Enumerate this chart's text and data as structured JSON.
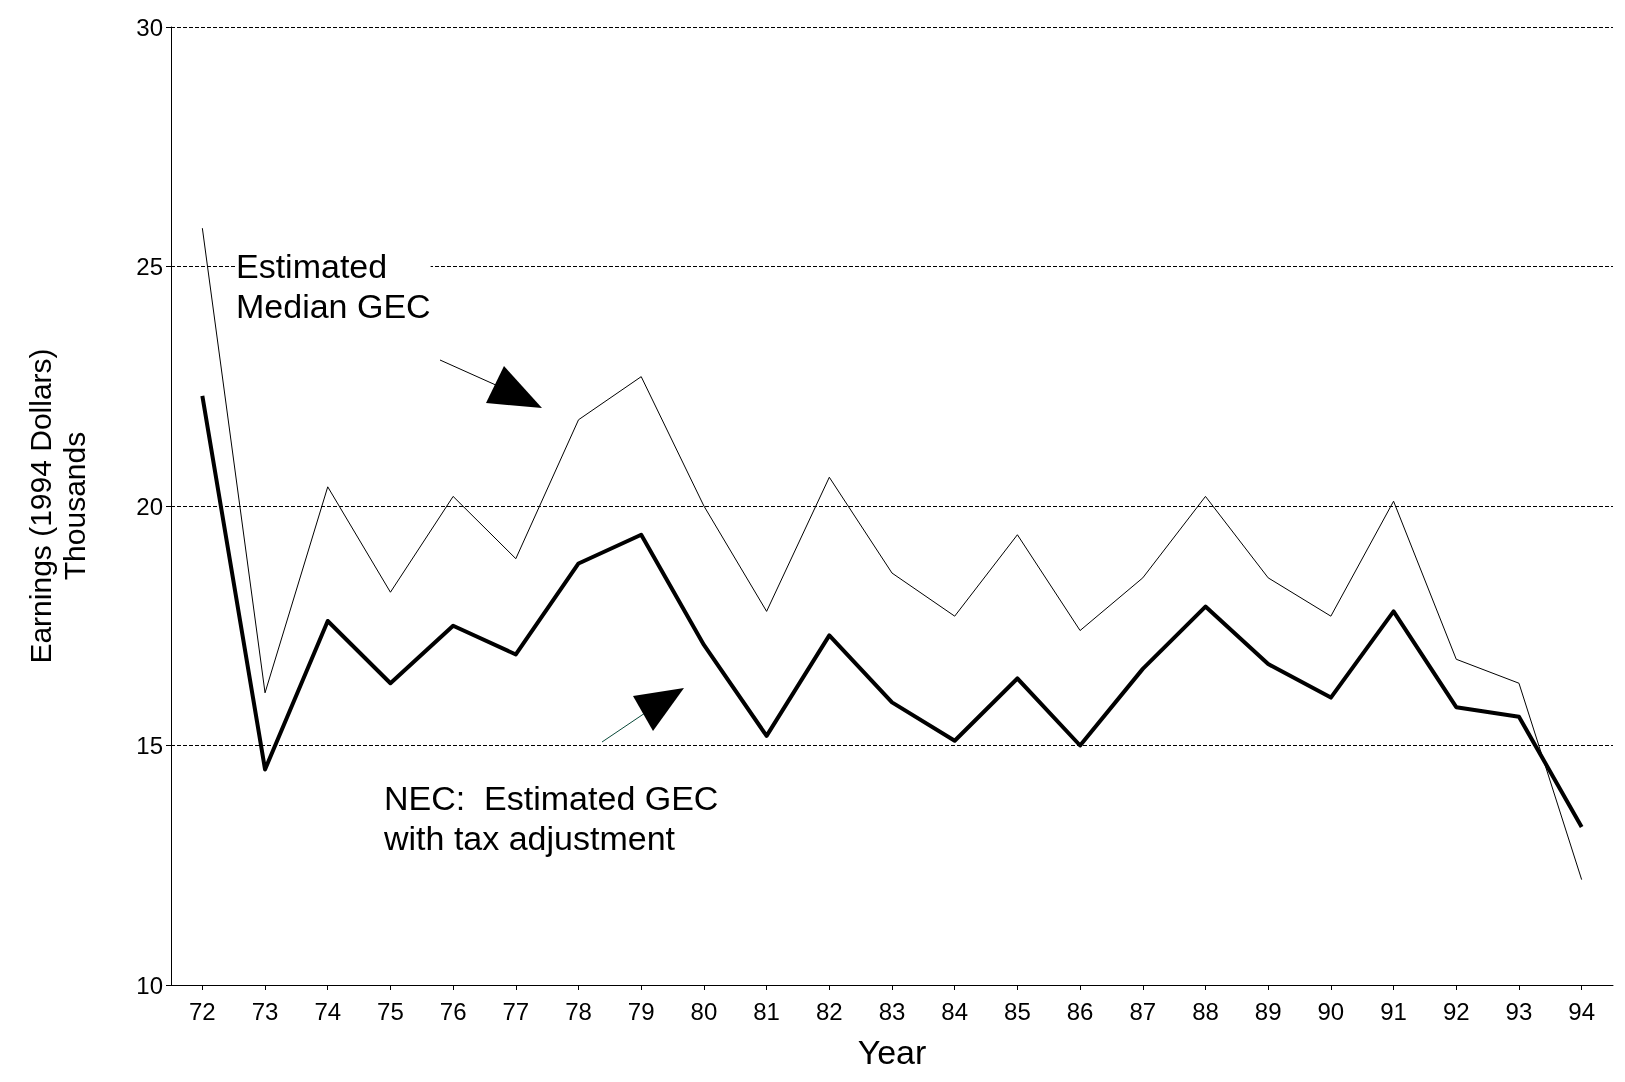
{
  "chart_data": {
    "type": "line",
    "xlabel": "Year",
    "ylabel": "Earnings (1994 Dollars)\nThousands",
    "categories": [
      "72",
      "73",
      "74",
      "75",
      "76",
      "77",
      "78",
      "79",
      "80",
      "81",
      "82",
      "83",
      "84",
      "85",
      "86",
      "87",
      "88",
      "89",
      "90",
      "91",
      "92",
      "93",
      "94"
    ],
    "series": [
      {
        "color": "#000000",
        "values": [
          25.8,
          16.1,
          20.4,
          18.2,
          20.2,
          18.9,
          21.8,
          22.7,
          20.0,
          17.8,
          20.6,
          18.6,
          17.7,
          19.4,
          17.4,
          18.5,
          20.2,
          18.5,
          17.7,
          20.1,
          16.8,
          16.3,
          12.2
        ]
      },
      {
        "color": "#000000",
        "values": [
          22.3,
          14.5,
          17.6,
          16.3,
          17.5,
          16.9,
          18.8,
          19.4,
          17.1,
          15.2,
          17.3,
          15.9,
          15.1,
          16.4,
          15.0,
          16.6,
          17.9,
          16.7,
          16.0,
          17.8,
          15.8,
          15.6,
          13.3
        ]
      }
    ],
    "ylim": [
      10,
      30
    ],
    "yticks": [
      10,
      15,
      20,
      25,
      30
    ],
    "grid": "y",
    "marker": "none",
    "line_style": "solid",
    "annotations": [
      "Estimated\nMedian GEC",
      "NEC:  Estimated GEC\nwith tax adjustment"
    ]
  }
}
